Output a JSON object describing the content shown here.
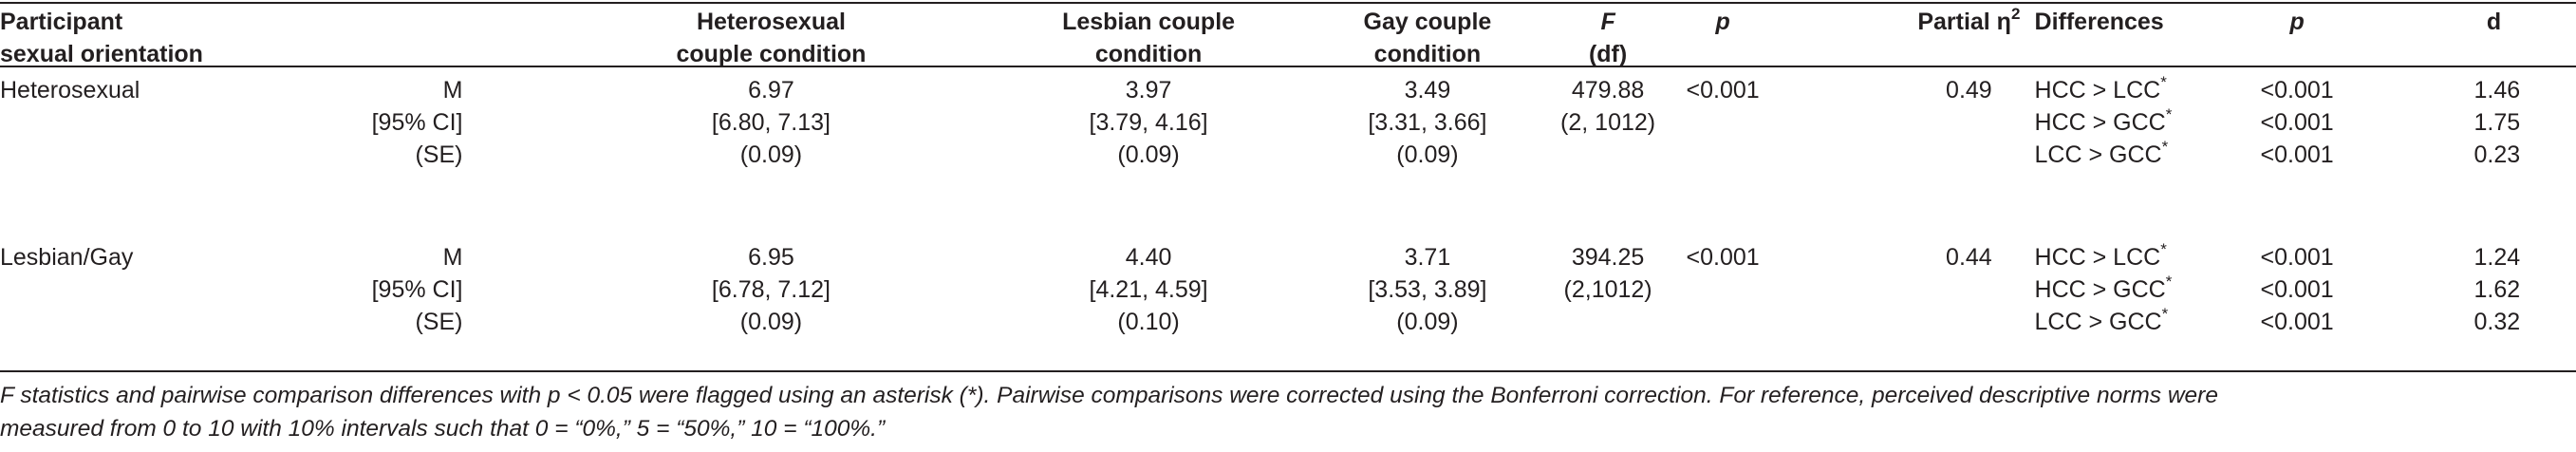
{
  "table": {
    "headers": {
      "orientation": [
        "Participant",
        "sexual orientation"
      ],
      "hcc": [
        "Heterosexual",
        "couple condition"
      ],
      "lcc": [
        "Lesbian couple",
        "condition"
      ],
      "gcc": [
        "Gay couple",
        "condition"
      ],
      "f": [
        "F",
        "(df)"
      ],
      "p": "p",
      "partial_eta": "Partial η",
      "partial_eta_sup": "2",
      "differences": "Differences",
      "p2": "p",
      "d": "d"
    },
    "groups": [
      {
        "orientation": "Heterosexual",
        "stat_labels": [
          "M",
          "[95% CI]",
          "(SE)"
        ],
        "hcc": [
          "6.97",
          "[6.80, 7.13]",
          "(0.09)"
        ],
        "lcc": [
          "3.97",
          "[3.79, 4.16]",
          "(0.09)"
        ],
        "gcc": [
          "3.49",
          "[3.31, 3.66]",
          "(0.09)"
        ],
        "f": [
          "479.88",
          "(2, 1012)"
        ],
        "p": "<0.001",
        "partial_eta": "0.49",
        "differences": [
          {
            "label": "HCC > LCC",
            "mark": "*",
            "p": "<0.001",
            "d": "1.46"
          },
          {
            "label": "HCC > GCC",
            "mark": "*",
            "p": "<0.001",
            "d": "1.75"
          },
          {
            "label": "LCC > GCC",
            "mark": "*",
            "p": "<0.001",
            "d": "0.23"
          }
        ]
      },
      {
        "orientation": "Lesbian/Gay",
        "stat_labels": [
          "M",
          "[95% CI]",
          "(SE)"
        ],
        "hcc": [
          "6.95",
          "[6.78, 7.12]",
          "(0.09)"
        ],
        "lcc": [
          "4.40",
          "[4.21, 4.59]",
          "(0.10)"
        ],
        "gcc": [
          "3.71",
          "[3.53, 3.89]",
          "(0.09)"
        ],
        "f": [
          "394.25",
          "(2,1012)"
        ],
        "p": "<0.001",
        "partial_eta": "0.44",
        "differences": [
          {
            "label": "HCC > LCC",
            "mark": "*",
            "p": "<0.001",
            "d": "1.24"
          },
          {
            "label": "HCC > GCC",
            "mark": "*",
            "p": "<0.001",
            "d": "1.62"
          },
          {
            "label": "LCC > GCC",
            "mark": "*",
            "p": "<0.001",
            "d": "0.32"
          }
        ]
      }
    ],
    "footnote": {
      "line1": "F statistics and pairwise comparison differences with p < 0.05 were flagged using an asterisk (*). Pairwise comparisons were corrected using the Bonferroni correction. For reference, perceived descriptive norms were",
      "line2": "measured from 0 to 10 with 10% intervals such that 0 = “0%,” 5 = “50%,” 10 = “100%.”"
    }
  }
}
